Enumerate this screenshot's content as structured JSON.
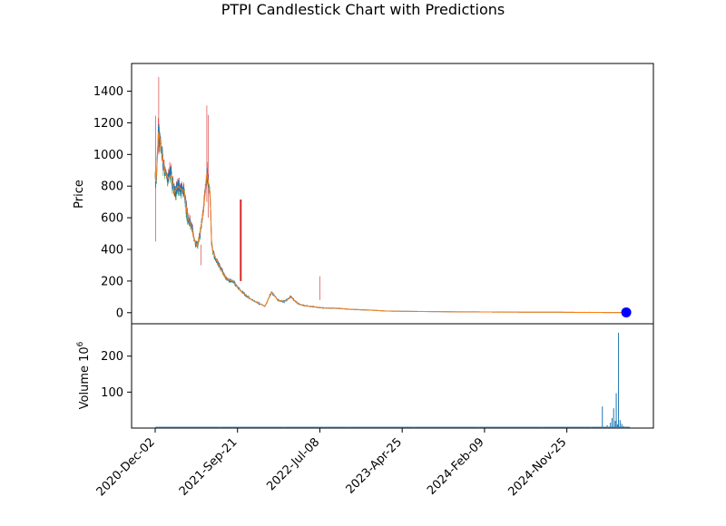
{
  "chart_data": {
    "type": "candlestick",
    "title": "PTPI Candlestick Chart with Predictions",
    "price_panel": {
      "ylabel": "Price",
      "ylim": [
        -70,
        1575
      ],
      "yticks": [
        0,
        200,
        400,
        600,
        800,
        1000,
        1200,
        1400
      ],
      "close_series_approx": {
        "x_index": [
          0,
          2,
          5,
          10,
          15,
          20,
          30,
          40,
          50,
          60,
          70,
          80,
          90,
          100,
          110,
          120,
          130,
          140,
          150,
          160,
          170,
          175,
          180,
          190,
          200,
          210,
          220,
          230,
          240,
          260,
          280,
          300,
          320,
          340,
          360,
          380,
          400,
          420,
          440,
          460,
          480,
          500,
          520,
          560,
          600,
          640,
          680,
          700,
          720,
          760,
          800,
          850,
          900,
          950,
          1000,
          1050,
          1100,
          1150,
          1200,
          1250,
          1300,
          1350,
          1400,
          1440,
          1470
        ],
        "close": [
          880,
          830,
          900,
          1140,
          1090,
          1010,
          890,
          850,
          870,
          760,
          800,
          780,
          770,
          600,
          560,
          470,
          420,
          520,
          650,
          880,
          760,
          430,
          380,
          330,
          290,
          250,
          215,
          205,
          200,
          150,
          110,
          80,
          60,
          40,
          130,
          80,
          70,
          100,
          60,
          45,
          40,
          35,
          30,
          28,
          22,
          18,
          15,
          12,
          10,
          9,
          8,
          7,
          6,
          5,
          5,
          4,
          4,
          3,
          3,
          3,
          2,
          2,
          1,
          1,
          1
        ]
      },
      "spike_annotations": [
        {
          "x_index": 11,
          "high": 1490,
          "low": 1000
        },
        {
          "x_index": 1,
          "high": 1245,
          "low": 450
        },
        {
          "x_index": 265,
          "high": 715,
          "low": 200
        },
        {
          "x_index": 160,
          "high": 1310,
          "low": 700
        },
        {
          "x_index": 165,
          "high": 1250,
          "low": 600
        },
        {
          "x_index": 142,
          "high": 430,
          "low": 300
        },
        {
          "x_index": 510,
          "high": 230,
          "low": 80
        }
      ],
      "prediction_marker": {
        "x_index": 1459,
        "value": 2,
        "color": "#0000ff"
      }
    },
    "volume_panel": {
      "ylabel": "Volume  10",
      "ylabel_exponent": "6",
      "ylim": [
        0,
        290
      ],
      "yticks": [
        100,
        200
      ],
      "bars": {
        "x_index": [
          0,
          200,
          400,
          600,
          800,
          1000,
          1200,
          1350,
          1385,
          1400,
          1410,
          1415,
          1420,
          1425,
          1428,
          1432,
          1435,
          1440,
          1445,
          1450,
          1455
        ],
        "volume": [
          1,
          1,
          1,
          1,
          1,
          1,
          1,
          2,
          60,
          8,
          15,
          28,
          55,
          20,
          97,
          10,
          265,
          22,
          12,
          6,
          3
        ]
      }
    },
    "xaxis": {
      "n_points": 1470,
      "tick_labels": [
        "2020-Dec-02",
        "2021-Sep-21",
        "2022-Jul-08",
        "2023-Apr-25",
        "2024-Feb-09",
        "2024-Nov-25"
      ],
      "tick_index": [
        0,
        255,
        510,
        765,
        1020,
        1275
      ]
    },
    "colors": {
      "up": "#2ca02c",
      "down": "#d62728",
      "line_open": "#1f77b4",
      "line_close": "#ff7f0e",
      "volume": "#1f77b4",
      "prediction": "#0000ff"
    }
  }
}
